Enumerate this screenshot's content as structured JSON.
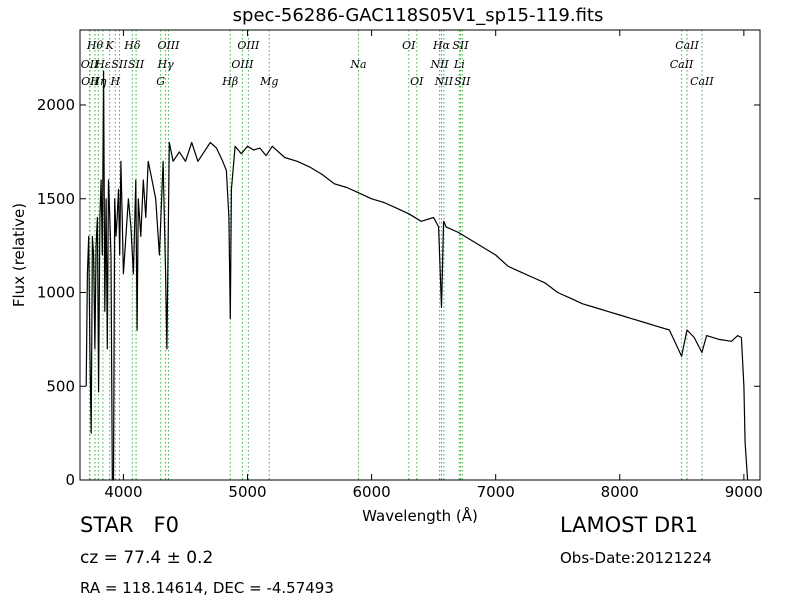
{
  "chart_data": {
    "type": "line",
    "title": "spec-56286-GAC118S05V1_sp15-119.fits",
    "xlabel": "Wavelength (Å)",
    "ylabel": "Flux (relative)",
    "xlim": [
      3650,
      9130
    ],
    "ylim": [
      0,
      2400
    ],
    "xticks": [
      4000,
      5000,
      6000,
      7000,
      8000,
      9000
    ],
    "xtick_labels": [
      "4000",
      "5000",
      "6000",
      "7000",
      "8000",
      "9000"
    ],
    "yticks": [
      0,
      500,
      1000,
      1500,
      2000
    ],
    "ytick_labels": [
      "0",
      "500",
      "1000",
      "1500",
      "2000"
    ],
    "grid": false,
    "series": [
      {
        "color": "#000000",
        "x": [
          3700,
          3710,
          3720,
          3730,
          3740,
          3750,
          3760,
          3770,
          3780,
          3790,
          3800,
          3810,
          3820,
          3830,
          3840,
          3850,
          3860,
          3870,
          3880,
          3890,
          3900,
          3910,
          3920,
          3930,
          3940,
          3950,
          3960,
          3970,
          3980,
          3990,
          4000,
          4020,
          4040,
          4060,
          4080,
          4100,
          4110,
          4120,
          4140,
          4160,
          4180,
          4200,
          4230,
          4260,
          4290,
          4320,
          4340,
          4350,
          4370,
          4400,
          4450,
          4500,
          4550,
          4600,
          4650,
          4700,
          4750,
          4800,
          4830,
          4850,
          4861,
          4870,
          4900,
          4950,
          5000,
          5050,
          5100,
          5150,
          5200,
          5300,
          5400,
          5500,
          5600,
          5700,
          5800,
          5900,
          6000,
          6100,
          6200,
          6300,
          6400,
          6500,
          6540,
          6563,
          6580,
          6600,
          6700,
          6800,
          6900,
          7000,
          7100,
          7200,
          7300,
          7400,
          7500,
          7600,
          7700,
          7800,
          7900,
          8000,
          8100,
          8200,
          8300,
          8400,
          8498,
          8542,
          8600,
          8662,
          8700,
          8800,
          8900,
          8950,
          8980,
          9000
        ],
        "values": [
          500,
          1100,
          1300,
          700,
          250,
          1300,
          1200,
          700,
          1250,
          1400,
          470,
          1400,
          1600,
          1200,
          2180,
          900,
          1500,
          700,
          1600,
          1400,
          1200,
          0,
          0,
          1500,
          1300,
          1400,
          1550,
          1200,
          1700,
          1400,
          1100,
          1300,
          1500,
          1350,
          1100,
          1600,
          800,
          1500,
          1300,
          1600,
          1400,
          1700,
          1600,
          1500,
          1200,
          1700,
          1100,
          700,
          1800,
          1700,
          1750,
          1700,
          1800,
          1700,
          1750,
          1800,
          1770,
          1700,
          1650,
          1400,
          860,
          1550,
          1780,
          1740,
          1780,
          1760,
          1770,
          1730,
          1780,
          1720,
          1700,
          1670,
          1630,
          1580,
          1560,
          1530,
          1500,
          1480,
          1450,
          1420,
          1380,
          1400,
          1350,
          920,
          1380,
          1350,
          1320,
          1280,
          1240,
          1200,
          1140,
          1110,
          1080,
          1050,
          1000,
          970,
          940,
          920,
          900,
          880,
          860,
          840,
          820,
          800,
          660,
          800,
          760,
          680,
          770,
          750,
          740,
          770,
          760,
          500
        ],
        "tail": [
          [
            9010,
            200
          ],
          [
            9030,
            0
          ]
        ]
      }
    ],
    "spectral_lines": [
      {
        "wavelength": 3727,
        "label": "OII",
        "row": 2
      },
      {
        "wavelength": 3730,
        "label": "OII",
        "row": 3
      },
      {
        "wavelength": 3771,
        "label": "Hθ",
        "row": 1
      },
      {
        "wavelength": 3798,
        "label": "Hη",
        "row": 3
      },
      {
        "wavelength": 3835,
        "label": "Hε",
        "row": 2
      },
      {
        "wavelength": 3889,
        "label": "K",
        "row": 1
      },
      {
        "wavelength": 3934,
        "label": "H",
        "row": 3
      },
      {
        "wavelength": 3968,
        "label": "SII",
        "row": 2
      },
      {
        "wavelength": 4072,
        "label": "Hδ",
        "row": 1
      },
      {
        "wavelength": 4102,
        "label": "SII",
        "row": 2
      },
      {
        "wavelength": 4300,
        "label": "G",
        "row": 3
      },
      {
        "wavelength": 4340,
        "label": "Hγ",
        "row": 2
      },
      {
        "wavelength": 4363,
        "label": "OIII",
        "row": 1
      },
      {
        "wavelength": 4861,
        "label": "Hβ",
        "row": 3
      },
      {
        "wavelength": 4959,
        "label": "OIII",
        "row": 2
      },
      {
        "wavelength": 5007,
        "label": "OIII",
        "row": 1
      },
      {
        "wavelength": 5175,
        "label": "Mg",
        "row": 3
      },
      {
        "wavelength": 5894,
        "label": "Na",
        "row": 2
      },
      {
        "wavelength": 6300,
        "label": "OI",
        "row": 1
      },
      {
        "wavelength": 6364,
        "label": "OI",
        "row": 3
      },
      {
        "wavelength": 6548,
        "label": "NII",
        "row": 2
      },
      {
        "wavelength": 6563,
        "label": "Hα",
        "row": 1
      },
      {
        "wavelength": 6583,
        "label": "NII",
        "row": 3
      },
      {
        "wavelength": 6707,
        "label": "Li",
        "row": 2
      },
      {
        "wavelength": 6716,
        "label": "SII",
        "row": 1
      },
      {
        "wavelength": 6731,
        "label": "SII",
        "row": 3
      },
      {
        "wavelength": 8498,
        "label": "CaII",
        "row": 2
      },
      {
        "wavelength": 8542,
        "label": "CaII",
        "row": 1
      },
      {
        "wavelength": 8662,
        "label": "CaII",
        "row": 3
      }
    ],
    "line_marker_color": "#3cb043"
  },
  "info": {
    "object_class": "STAR   F0",
    "survey": "LAMOST DR1",
    "redshift": "cz = 77.4 ± 0.2",
    "obs_date": "Obs-Date:20121224",
    "coords": "RA = 118.14614, DEC = -4.57493"
  }
}
